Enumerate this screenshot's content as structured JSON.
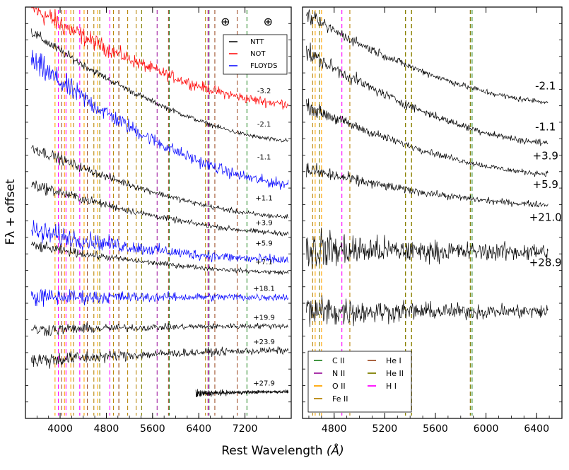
{
  "chart_data": {
    "type": "line",
    "xlabel": "Rest Wavelength",
    "xlabel_unit": "(Å)",
    "ylabel": "Fλ + offset",
    "colors": {
      "NTT": "#000000",
      "NOT": "#ff0000",
      "FLOYDS": "#0000ff",
      "C II": "#2e8b2e",
      "N II": "#a020a0",
      "O II": "#ffa500",
      "Fe II": "#b8860b",
      "He I": "#a0522d",
      "He II": "#808000",
      "H I": "#ff00ff"
    },
    "panels": [
      {
        "name": "left",
        "xlim": [
          3400,
          8000
        ],
        "ylim": [
          0,
          100
        ],
        "xticks": [
          4000,
          4800,
          5600,
          6400,
          7200
        ],
        "legend": [
          "NTT",
          "NOT",
          "FLOYDS"
        ],
        "markers": [
          {
            "symbol": "⊕",
            "x": 6860
          },
          {
            "symbol": "⊕",
            "x": 7600
          }
        ],
        "spectra": [
          {
            "epoch": "-3.2",
            "instrument": "NOT",
            "x0": 3500,
            "x1": 7950,
            "level_start": 100,
            "level_end": 76.5,
            "noise": 1.8,
            "label_x": 7530,
            "label_y": 79
          },
          {
            "epoch": "-2.1",
            "instrument": "NTT",
            "x0": 3500,
            "x1": 7950,
            "level_start": 94,
            "level_end": 67.5,
            "noise": 0.8,
            "label_x": 7530,
            "label_y": 71
          },
          {
            "epoch": "-1.1",
            "instrument": "FLOYDS",
            "x0": 3500,
            "x1": 7950,
            "level_start": 87,
            "level_end": 57,
            "noise": 2.0,
            "label_x": 7530,
            "label_y": 63
          },
          {
            "epoch": "+1.1",
            "instrument": "NTT",
            "x0": 3500,
            "x1": 7950,
            "level_start": 66,
            "level_end": 49,
            "noise": 0.9,
            "label_x": 7530,
            "label_y": 53
          },
          {
            "epoch": "+3.9",
            "instrument": "NTT",
            "x0": 3500,
            "x1": 7950,
            "level_start": 57,
            "level_end": 45,
            "noise": 0.9,
            "label_x": 7530,
            "label_y": 47
          },
          {
            "epoch": "+5.9",
            "instrument": "FLOYDS",
            "x0": 3500,
            "x1": 7950,
            "level_start": 45.5,
            "level_end": 38.5,
            "noise": 1.8,
            "label_x": 7530,
            "label_y": 42
          },
          {
            "epoch": "+7.1",
            "instrument": "NTT",
            "x0": 3500,
            "x1": 7950,
            "level_start": 42,
            "level_end": 35.5,
            "noise": 0.8,
            "label_x": 7530,
            "label_y": 37.5
          },
          {
            "epoch": "+18.1",
            "instrument": "FLOYDS",
            "x0": 3500,
            "x1": 7950,
            "level_start": 29.5,
            "level_end": 29.5,
            "noise": 1.4,
            "label_x": 7530,
            "label_y": 31
          },
          {
            "epoch": "+19.9",
            "instrument": "NTT",
            "x0": 3500,
            "x1": 7950,
            "level_start": 21.5,
            "level_end": 22.5,
            "noise": 1.0,
            "label_x": 7530,
            "label_y": 24
          },
          {
            "epoch": "+23.9",
            "instrument": "NTT",
            "x0": 3500,
            "x1": 7950,
            "level_start": 14,
            "level_end": 16.5,
            "noise": 1.3,
            "label_x": 7530,
            "label_y": 18
          },
          {
            "epoch": "+27.9",
            "instrument": "NTT",
            "x0": 6350,
            "x1": 7950,
            "level_start": 6,
            "level_end": 6.5,
            "noise": 0.6,
            "label_x": 7530,
            "label_y": 8
          }
        ],
        "lines": [
          {
            "ion": "C II",
            "x": 5890
          },
          {
            "ion": "C II",
            "x": 6578
          },
          {
            "ion": "C II",
            "x": 7234
          },
          {
            "ion": "N II",
            "x": 5679
          },
          {
            "ion": "N II",
            "x": 6563
          },
          {
            "ion": "O II",
            "x": 3912
          },
          {
            "ion": "O II",
            "x": 4076
          },
          {
            "ion": "O II",
            "x": 4185
          },
          {
            "ion": "O II",
            "x": 4415
          },
          {
            "ion": "O II",
            "x": 4650
          },
          {
            "ion": "Fe II",
            "x": 4233
          },
          {
            "ion": "Fe II",
            "x": 4584
          },
          {
            "ion": "Fe II",
            "x": 4924
          },
          {
            "ion": "Fe II",
            "x": 5018
          },
          {
            "ion": "Fe II",
            "x": 5169
          },
          {
            "ion": "Fe II",
            "x": 5317
          },
          {
            "ion": "Fe II",
            "x": 6516
          },
          {
            "ion": "He I",
            "x": 4026
          },
          {
            "ion": "He I",
            "x": 4471
          },
          {
            "ion": "He I",
            "x": 5016
          },
          {
            "ion": "He I",
            "x": 5876
          },
          {
            "ion": "He I",
            "x": 6678
          },
          {
            "ion": "He I",
            "x": 7065
          },
          {
            "ion": "He II",
            "x": 4686
          },
          {
            "ion": "He II",
            "x": 5411
          },
          {
            "ion": "He II",
            "x": 6560
          },
          {
            "ion": "H I",
            "x": 3970
          },
          {
            "ion": "H I",
            "x": 4102
          },
          {
            "ion": "H I",
            "x": 4340
          },
          {
            "ion": "H I",
            "x": 4861
          },
          {
            "ion": "H I",
            "x": 6563
          }
        ]
      },
      {
        "name": "right",
        "xlim": [
          4550,
          6600
        ],
        "ylim": [
          0,
          100
        ],
        "xticks": [
          4800,
          5200,
          5600,
          6000,
          6400
        ],
        "legend": [
          "C II",
          "N II",
          "O II",
          "Fe II",
          "He I",
          "He II",
          "H I"
        ],
        "spectra": [
          {
            "epoch": "-2.1",
            "instrument": "NTT",
            "x0": 4580,
            "x1": 6490,
            "level_start": 98,
            "level_end": 77,
            "noise": 1.0,
            "label_x": 6470,
            "label_y": 80
          },
          {
            "epoch": "-1.1",
            "instrument": "NTT",
            "x0": 4580,
            "x1": 6490,
            "level_start": 89,
            "level_end": 67,
            "noise": 1.2,
            "label_x": 6470,
            "label_y": 70
          },
          {
            "epoch": "+3.9",
            "instrument": "NTT",
            "x0": 4580,
            "x1": 6490,
            "level_start": 76,
            "level_end": 59.5,
            "noise": 1.0,
            "label_x": 6470,
            "label_y": 63
          },
          {
            "epoch": "+5.9",
            "instrument": "NTT",
            "x0": 4580,
            "x1": 6490,
            "level_start": 60.5,
            "level_end": 52,
            "noise": 1.1,
            "label_x": 6470,
            "label_y": 56
          },
          {
            "epoch": "+21.0",
            "instrument": "NTT",
            "x0": 4580,
            "x1": 6490,
            "level_start": 41,
            "level_end": 40.5,
            "noise": 3.2,
            "label_x": 6470,
            "label_y": 48
          },
          {
            "epoch": "+28.9",
            "instrument": "NTT",
            "x0": 4580,
            "x1": 6490,
            "level_start": 26,
            "level_end": 26,
            "noise": 2.6,
            "label_x": 6470,
            "label_y": 37
          }
        ],
        "lines": [
          {
            "ion": "C II",
            "x": 5890
          },
          {
            "ion": "O II",
            "x": 4650
          },
          {
            "ion": "O II",
            "x": 4700
          },
          {
            "ion": "Fe II",
            "x": 4630
          },
          {
            "ion": "Fe II",
            "x": 4924
          },
          {
            "ion": "Fe II",
            "x": 5363
          },
          {
            "ion": "Fe II",
            "x": 5412
          },
          {
            "ion": "He I",
            "x": 5876
          },
          {
            "ion": "He II",
            "x": 4685
          },
          {
            "ion": "He II",
            "x": 5364
          },
          {
            "ion": "He II",
            "x": 5411
          },
          {
            "ion": "He II",
            "x": 5876
          },
          {
            "ion": "H I",
            "x": 4861
          }
        ]
      }
    ]
  }
}
